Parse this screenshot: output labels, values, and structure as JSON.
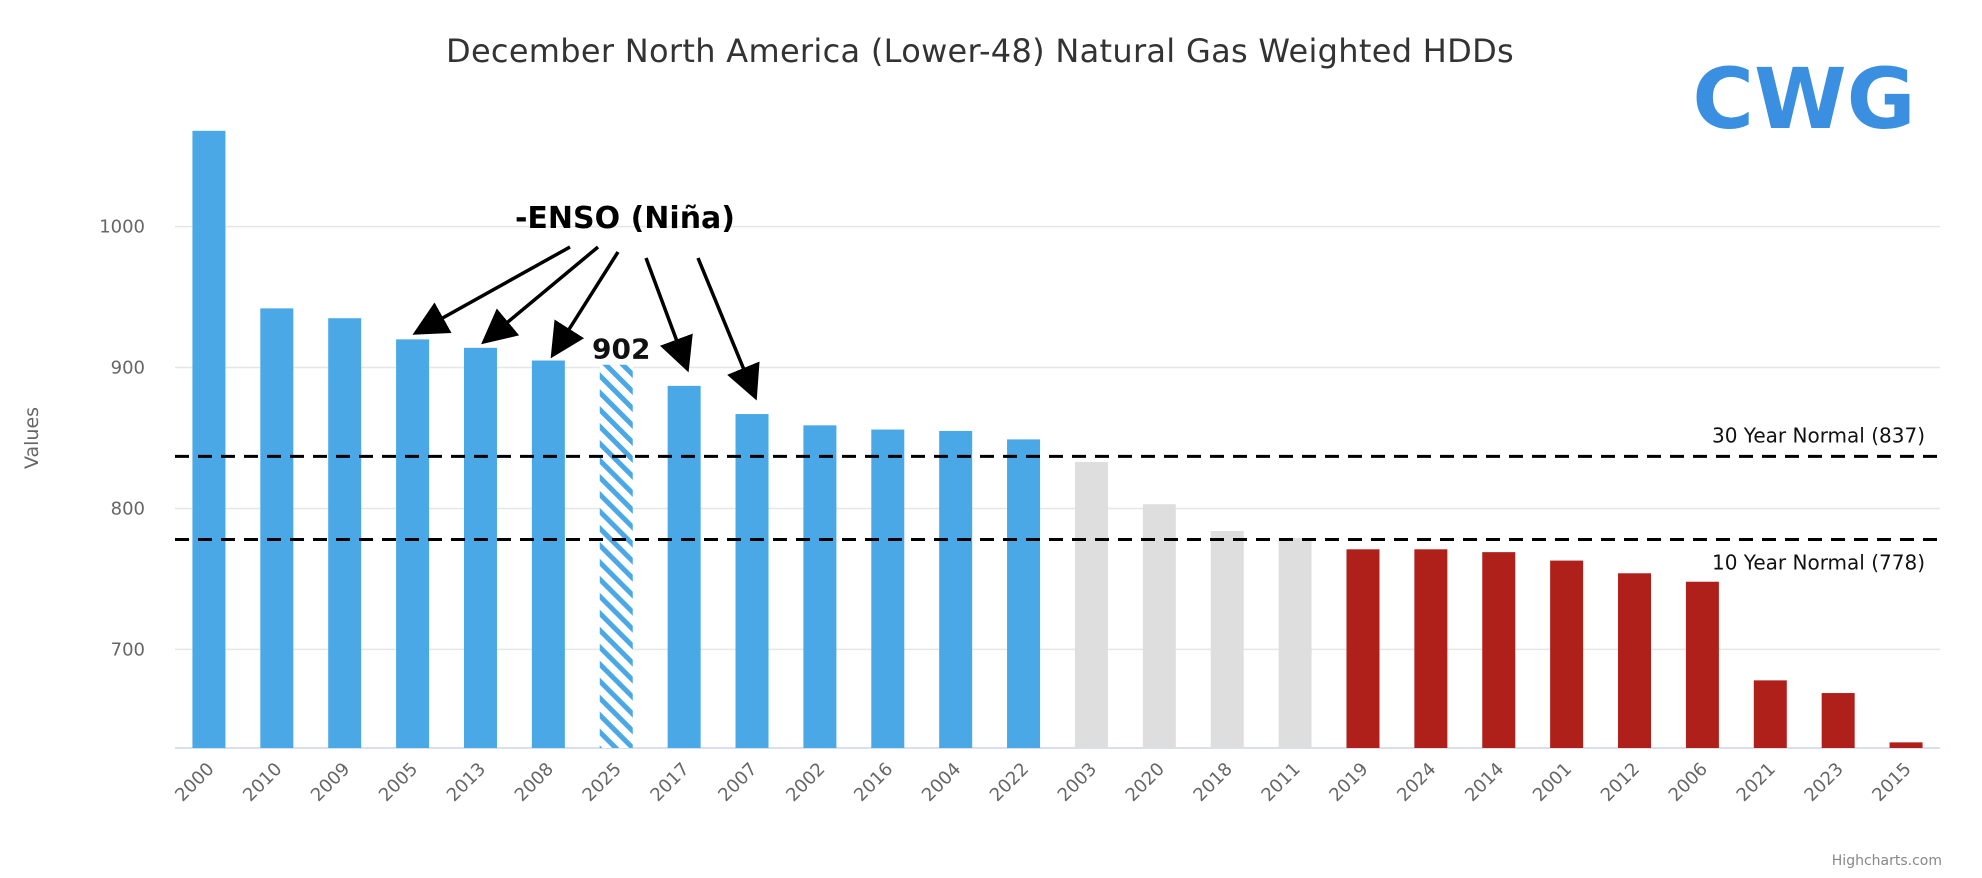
{
  "chart_data": {
    "type": "bar",
    "title": "December North America (Lower-48) Natural Gas Weighted HDDs",
    "ylabel": "Values",
    "xlabel": "",
    "ylim": [
      630,
      1070
    ],
    "yticks": [
      700,
      800,
      900,
      1000
    ],
    "grid": true,
    "categories": [
      "2000",
      "2010",
      "2009",
      "2005",
      "2013",
      "2008",
      "2025",
      "2017",
      "2007",
      "2002",
      "2016",
      "2004",
      "2022",
      "2003",
      "2020",
      "2018",
      "2011",
      "2019",
      "2024",
      "2014",
      "2001",
      "2012",
      "2006",
      "2021",
      "2023",
      "2015"
    ],
    "values": [
      1068,
      942,
      935,
      920,
      914,
      905,
      902,
      887,
      867,
      859,
      856,
      855,
      849,
      833,
      803,
      784,
      779,
      771,
      771,
      769,
      763,
      754,
      748,
      678,
      669,
      634
    ],
    "groups": [
      "cold",
      "cold",
      "cold",
      "cold",
      "cold",
      "cold",
      "forecast",
      "cold",
      "cold",
      "cold",
      "cold",
      "cold",
      "cold",
      "near",
      "near",
      "near",
      "near",
      "warm",
      "warm",
      "warm",
      "warm",
      "warm",
      "warm",
      "warm",
      "warm",
      "warm"
    ],
    "colors": {
      "cold": "#4aa8e6",
      "forecast": "#4aa8e6",
      "near": "#dedede",
      "warm": "#b0201b"
    },
    "reference_lines": [
      {
        "label": "30 Year Normal (837)",
        "value": 837
      },
      {
        "label": "10 Year Normal (778)",
        "value": 778
      }
    ],
    "value_label": {
      "category": "2025",
      "text": "902"
    },
    "annotation": {
      "text": "-ENSO (Niña)",
      "arrow_targets": [
        "2005",
        "2013",
        "2008",
        "2017",
        "2007"
      ]
    },
    "credit": "Highcharts.com"
  },
  "logo": {
    "text": "CWG",
    "color": "#3a8fe0"
  }
}
